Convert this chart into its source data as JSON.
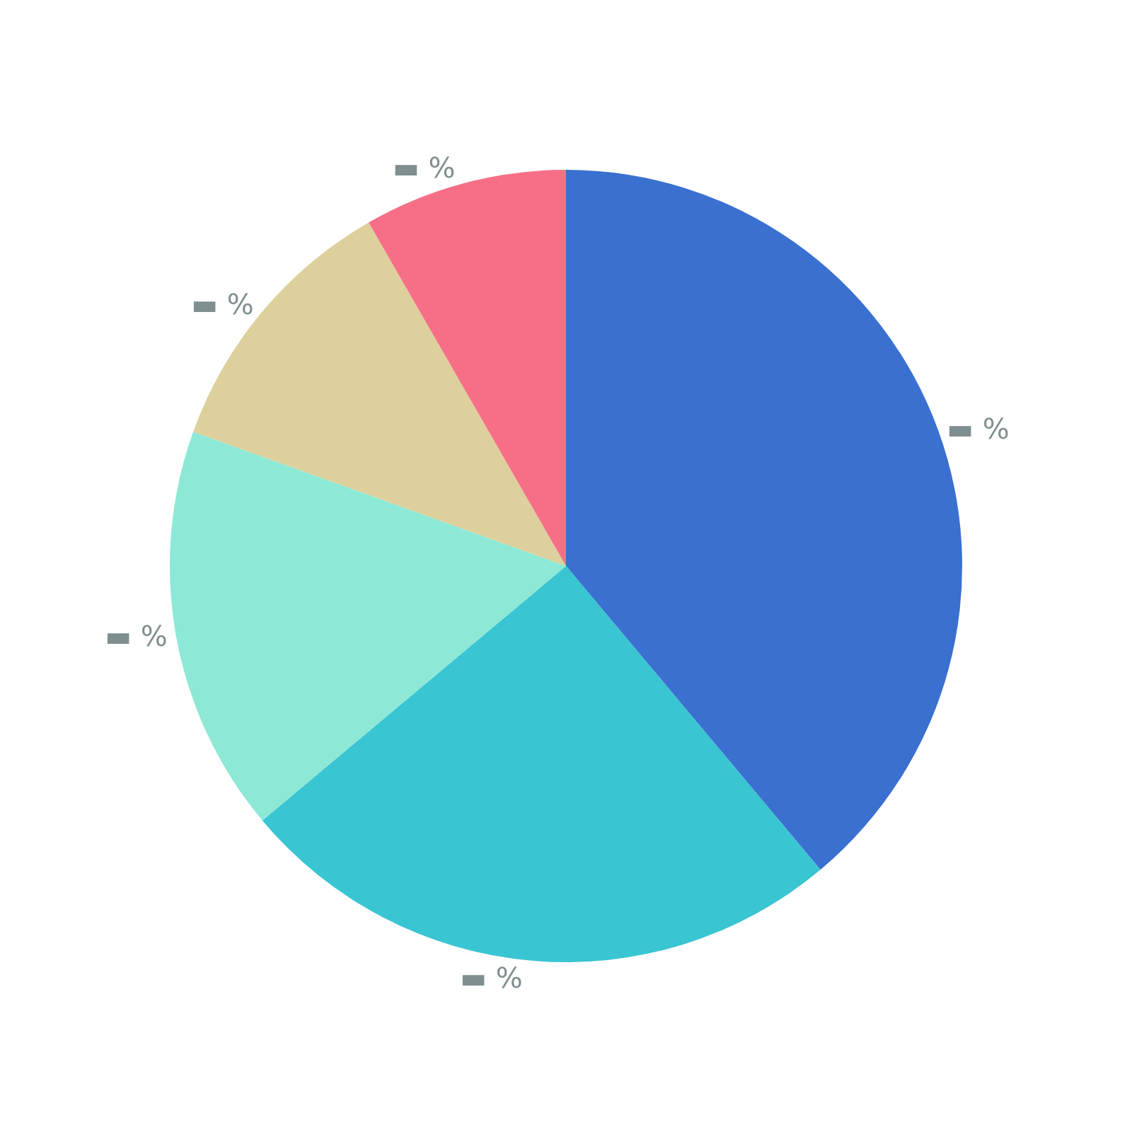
{
  "chart_data": {
    "type": "pie",
    "categories": [
      null,
      null,
      null,
      null,
      null
    ],
    "values": [
      38.9,
      25.0,
      16.6,
      11.2,
      8.3
    ],
    "colors": [
      "#3a70cf",
      "#39c5d2",
      "#8ee8d6",
      "#ddd09d",
      "#f76f87"
    ],
    "value_labels": [
      "▬ %",
      "▬ %",
      "▬ %",
      "▬ %",
      "▬ %"
    ],
    "legend": false
  }
}
